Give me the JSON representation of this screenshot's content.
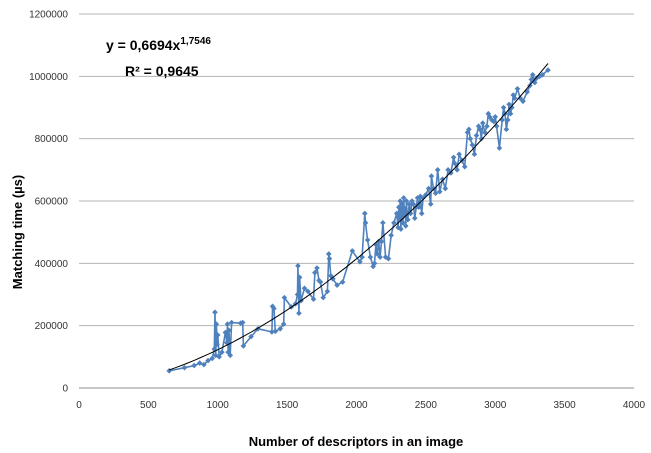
{
  "chart_data": {
    "type": "scatter",
    "xlabel": "Number of descriptors in an image",
    "ylabel": "Matching time (µs)",
    "xlim": [
      0,
      4000
    ],
    "ylim": [
      0,
      1200000
    ],
    "x_ticks": [
      "0",
      "500",
      "1000",
      "1500",
      "2000",
      "2500",
      "3000",
      "3500",
      "4000"
    ],
    "y_ticks": [
      "0",
      "200000",
      "400000",
      "600000",
      "800000",
      "1000000",
      "1200000"
    ],
    "grid": "horizontal",
    "colors": {
      "series": "#4f81bd",
      "trendline": "#000000",
      "grid": "#b3b3b3"
    },
    "trendline": {
      "type": "power",
      "coefficient": 0.6694,
      "exponent": 1.7546,
      "equation_main": "y = 0,6694x",
      "equation_exponent": "1,7546",
      "r_squared_text": "R² = 0,9645",
      "x_range": [
        650,
        3380
      ]
    },
    "series": [
      {
        "points": [
          [
            650,
            55000
          ],
          [
            760,
            65000
          ],
          [
            830,
            72000
          ],
          [
            870,
            80000
          ],
          [
            900,
            75000
          ],
          [
            930,
            88000
          ],
          [
            960,
            95000
          ],
          [
            975,
            125000
          ],
          [
            980,
            243000
          ],
          [
            985,
            105000
          ],
          [
            990,
            205000
          ],
          [
            995,
            140000
          ],
          [
            1000,
            170000
          ],
          [
            1010,
            100000
          ],
          [
            1030,
            115000
          ],
          [
            1055,
            178000
          ],
          [
            1065,
            145000
          ],
          [
            1070,
            205000
          ],
          [
            1075,
            115000
          ],
          [
            1080,
            185000
          ],
          [
            1090,
            105000
          ],
          [
            1100,
            210000
          ],
          [
            1165,
            208000
          ],
          [
            1180,
            210000
          ],
          [
            1185,
            135000
          ],
          [
            1240,
            165000
          ],
          [
            1290,
            190000
          ],
          [
            1390,
            180000
          ],
          [
            1395,
            262000
          ],
          [
            1405,
            255000
          ],
          [
            1415,
            182000
          ],
          [
            1450,
            190000
          ],
          [
            1475,
            205000
          ],
          [
            1480,
            290000
          ],
          [
            1530,
            260000
          ],
          [
            1560,
            270000
          ],
          [
            1575,
            300000
          ],
          [
            1578,
            392000
          ],
          [
            1585,
            240000
          ],
          [
            1590,
            355000
          ],
          [
            1600,
            280000
          ],
          [
            1625,
            320000
          ],
          [
            1650,
            310000
          ],
          [
            1690,
            285000
          ],
          [
            1700,
            370000
          ],
          [
            1715,
            385000
          ],
          [
            1730,
            345000
          ],
          [
            1740,
            340000
          ],
          [
            1760,
            290000
          ],
          [
            1790,
            310000
          ],
          [
            1800,
            430000
          ],
          [
            1805,
            415000
          ],
          [
            1815,
            360000
          ],
          [
            1830,
            350000
          ],
          [
            1860,
            330000
          ],
          [
            1900,
            340000
          ],
          [
            1970,
            440000
          ],
          [
            2025,
            405000
          ],
          [
            2040,
            420000
          ],
          [
            2060,
            560000
          ],
          [
            2065,
            530000
          ],
          [
            2080,
            475000
          ],
          [
            2100,
            420000
          ],
          [
            2120,
            390000
          ],
          [
            2130,
            400000
          ],
          [
            2140,
            460000
          ],
          [
            2150,
            430000
          ],
          [
            2160,
            470000
          ],
          [
            2170,
            420000
          ],
          [
            2180,
            470000
          ],
          [
            2190,
            530000
          ],
          [
            2210,
            420000
          ],
          [
            2230,
            415000
          ],
          [
            2250,
            490000
          ],
          [
            2270,
            530000
          ],
          [
            2290,
            560000
          ],
          [
            2300,
            515000
          ],
          [
            2305,
            580000
          ],
          [
            2310,
            545000
          ],
          [
            2315,
            600000
          ],
          [
            2320,
            510000
          ],
          [
            2325,
            570000
          ],
          [
            2330,
            590000
          ],
          [
            2335,
            530000
          ],
          [
            2340,
            610000
          ],
          [
            2345,
            555000
          ],
          [
            2350,
            575000
          ],
          [
            2355,
            520000
          ],
          [
            2360,
            600000
          ],
          [
            2365,
            560000
          ],
          [
            2370,
            540000
          ],
          [
            2380,
            590000
          ],
          [
            2390,
            560000
          ],
          [
            2400,
            600000
          ],
          [
            2410,
            590000
          ],
          [
            2420,
            545000
          ],
          [
            2430,
            580000
          ],
          [
            2440,
            610000
          ],
          [
            2450,
            580000
          ],
          [
            2460,
            615000
          ],
          [
            2470,
            560000
          ],
          [
            2480,
            610000
          ],
          [
            2500,
            620000
          ],
          [
            2520,
            640000
          ],
          [
            2535,
            590000
          ],
          [
            2540,
            680000
          ],
          [
            2555,
            640000
          ],
          [
            2570,
            625000
          ],
          [
            2585,
            700000
          ],
          [
            2600,
            630000
          ],
          [
            2620,
            670000
          ],
          [
            2640,
            640000
          ],
          [
            2660,
            700000
          ],
          [
            2680,
            690000
          ],
          [
            2700,
            740000
          ],
          [
            2710,
            720000
          ],
          [
            2725,
            700000
          ],
          [
            2740,
            750000
          ],
          [
            2760,
            730000
          ],
          [
            2780,
            710000
          ],
          [
            2800,
            820000
          ],
          [
            2810,
            830000
          ],
          [
            2820,
            800000
          ],
          [
            2835,
            780000
          ],
          [
            2850,
            750000
          ],
          [
            2865,
            810000
          ],
          [
            2880,
            840000
          ],
          [
            2890,
            830000
          ],
          [
            2900,
            800000
          ],
          [
            2910,
            850000
          ],
          [
            2925,
            820000
          ],
          [
            2940,
            840000
          ],
          [
            2950,
            880000
          ],
          [
            2960,
            870000
          ],
          [
            2975,
            860000
          ],
          [
            2990,
            855000
          ],
          [
            3000,
            870000
          ],
          [
            3010,
            840000
          ],
          [
            3030,
            770000
          ],
          [
            3050,
            860000
          ],
          [
            3060,
            900000
          ],
          [
            3070,
            880000
          ],
          [
            3080,
            830000
          ],
          [
            3090,
            860000
          ],
          [
            3100,
            910000
          ],
          [
            3110,
            880000
          ],
          [
            3120,
            900000
          ],
          [
            3130,
            940000
          ],
          [
            3140,
            930000
          ],
          [
            3160,
            960000
          ],
          [
            3180,
            930000
          ],
          [
            3200,
            920000
          ],
          [
            3230,
            950000
          ],
          [
            3250,
            970000
          ],
          [
            3260,
            990000
          ],
          [
            3270,
            1005000
          ],
          [
            3285,
            980000
          ],
          [
            3300,
            995000
          ],
          [
            3320,
            1000000
          ],
          [
            3340,
            1005000
          ],
          [
            3380,
            1020000
          ]
        ]
      }
    ]
  }
}
